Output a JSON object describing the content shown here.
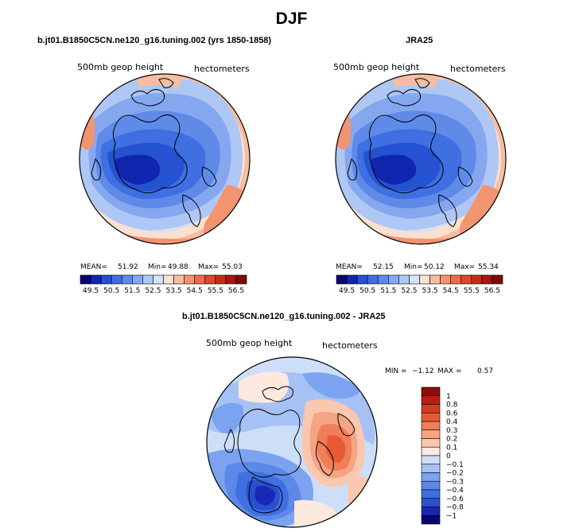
{
  "figure_title": "DJF",
  "panels": [
    {
      "title": "b.jt01.B1850C5CN.ne120_g16.tuning.002 (yrs 1850-1858)",
      "left_label": "500mb geop height",
      "right_label": "hectometers",
      "stats": {
        "mean_label": "MEAN=",
        "mean": "51.92",
        "min_label": "Min=",
        "min": "49.88",
        "max_label": "Max=",
        "max": "55.03"
      }
    },
    {
      "title": "JRA25",
      "left_label": "500mb geop height",
      "right_label": "hectometers",
      "stats": {
        "mean_label": "MEAN=",
        "mean": "52.15",
        "min_label": "Min=",
        "min": "50.12",
        "max_label": "Max=",
        "max": "55.34"
      }
    },
    {
      "title": "b.jt01.B1850C5CN.ne120_g16.tuning.002 - JRA25",
      "left_label": "500mb geop height",
      "right_label": "hectometers",
      "stats": {
        "min_label": "MIN =",
        "min": "−1.12",
        "max_label": "MAX =",
        "max": "0.57"
      }
    }
  ],
  "colorbar_abs": {
    "colors": [
      "#08076b",
      "#1026b0",
      "#2452d0",
      "#3f6fe0",
      "#5f8ae8",
      "#85a7f0",
      "#aec7f5",
      "#d3e2f8",
      "#fbe0d0",
      "#f8bda0",
      "#f29470",
      "#ec6c4a",
      "#e0462b",
      "#c82a1a",
      "#a81512",
      "#7e0a0a"
    ],
    "tick_labels": [
      "49.5",
      "50.5",
      "51.5",
      "52.5",
      "53.5",
      "54.5",
      "55.5",
      "56.5"
    ]
  },
  "colorbar_diff": {
    "colors": [
      "#08076b",
      "#1828b5",
      "#2a50d2",
      "#3f6fe0",
      "#5c88e8",
      "#7ca3f0",
      "#a6c2f5",
      "#cddff8",
      "#fde9dd",
      "#fbc7ae",
      "#f6a484",
      "#f07e58",
      "#e85a34",
      "#d63a20",
      "#b81f12",
      "#8c0d0a"
    ],
    "tick_labels": [
      "1",
      "0.8",
      "0.6",
      "0.4",
      "0.3",
      "0.2",
      "0.1",
      "0",
      "−0.1",
      "−0.2",
      "−0.3",
      "−0.4",
      "−0.6",
      "−0.8",
      "−1"
    ]
  },
  "chart_data": [
    {
      "type": "heatmap",
      "title": "b.jt01.B1850C5CN.ne120_g16.tuning.002 (yrs 1850-1858)",
      "variable": "500mb geop height",
      "units": "hectometers",
      "projection": "north polar stereographic",
      "mean": 51.92,
      "min": 49.88,
      "max": 55.03,
      "levels": [
        49.5,
        50.5,
        51.5,
        52.5,
        53.5,
        54.5,
        55.5,
        56.5
      ]
    },
    {
      "type": "heatmap",
      "title": "JRA25",
      "variable": "500mb geop height",
      "units": "hectometers",
      "projection": "north polar stereographic",
      "mean": 52.15,
      "min": 50.12,
      "max": 55.34,
      "levels": [
        49.5,
        50.5,
        51.5,
        52.5,
        53.5,
        54.5,
        55.5,
        56.5
      ]
    },
    {
      "type": "heatmap",
      "title": "b.jt01.B1850C5CN.ne120_g16.tuning.002 - JRA25",
      "variable": "500mb geop height",
      "units": "hectometers",
      "projection": "north polar stereographic",
      "min": -1.12,
      "max": 0.57,
      "levels": [
        -1,
        -0.8,
        -0.6,
        -0.4,
        -0.3,
        -0.2,
        -0.1,
        0,
        0.1,
        0.2,
        0.3,
        0.4,
        0.6,
        0.8,
        1
      ]
    }
  ]
}
